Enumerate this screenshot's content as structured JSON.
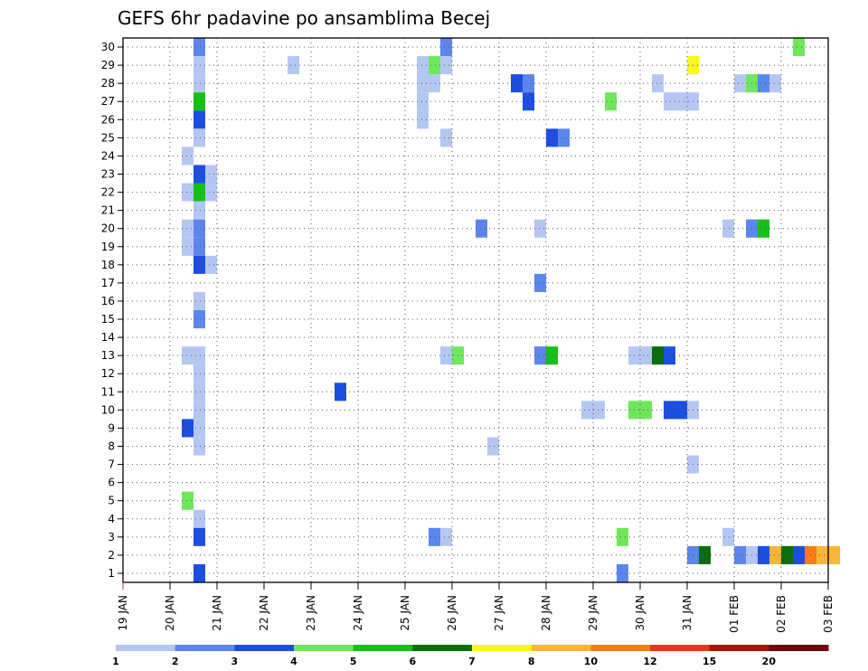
{
  "chart_data": {
    "type": "heatmap",
    "title": "GEFS 6hr padavine po ansamblima Becej",
    "x_ticks": [
      "19 JAN",
      "20 JAN",
      "21 JAN",
      "22 JAN",
      "23 JAN",
      "24 JAN",
      "25 JAN",
      "26 JAN",
      "27 JAN",
      "28 JAN",
      "29 JAN",
      "30 JAN",
      "31 JAN",
      "01 FEB",
      "02 FEB",
      "03 FEB"
    ],
    "y_ticks": [
      1,
      2,
      3,
      4,
      5,
      6,
      7,
      8,
      9,
      10,
      11,
      12,
      13,
      14,
      15,
      16,
      17,
      18,
      19,
      20,
      21,
      22,
      23,
      24,
      25,
      26,
      27,
      28,
      29,
      30
    ],
    "x_range_days": [
      0,
      15
    ],
    "y_range": [
      0.5,
      30.5
    ],
    "grid": true,
    "colorbar": {
      "labels": [
        "1",
        "2",
        "3",
        "4",
        "5",
        "6",
        "7",
        "8",
        "10",
        "12",
        "15",
        "20"
      ],
      "colors": [
        "#b4c7f3",
        "#5b86ec",
        "#1c4fe0",
        "#6ee85a",
        "#16c016",
        "#0a6e0a",
        "#f8f81a",
        "#fcb438",
        "#fc7c14",
        "#e03a16",
        "#a8140e",
        "#6e0a0a"
      ]
    },
    "cells": [
      [
        1.5,
        30,
        2
      ],
      [
        1.5,
        29,
        1
      ],
      [
        1.5,
        28,
        1
      ],
      [
        1.5,
        27,
        5
      ],
      [
        1.5,
        26,
        3
      ],
      [
        1.5,
        25,
        1
      ],
      [
        1.25,
        24,
        1
      ],
      [
        1.5,
        23,
        3
      ],
      [
        1.75,
        23,
        1
      ],
      [
        1.25,
        22,
        1
      ],
      [
        1.5,
        22,
        5
      ],
      [
        1.75,
        22,
        1
      ],
      [
        1.5,
        21,
        1
      ],
      [
        1.25,
        20,
        1
      ],
      [
        1.5,
        20,
        2
      ],
      [
        1.25,
        19,
        1
      ],
      [
        1.5,
        19,
        2
      ],
      [
        1.5,
        18,
        3
      ],
      [
        1.75,
        18,
        1
      ],
      [
        1.5,
        16,
        1
      ],
      [
        1.5,
        15,
        2
      ],
      [
        1.25,
        13,
        1
      ],
      [
        1.5,
        13,
        1
      ],
      [
        1.5,
        12,
        1
      ],
      [
        1.5,
        11,
        1
      ],
      [
        1.5,
        10,
        1
      ],
      [
        1.25,
        9,
        3
      ],
      [
        1.5,
        9,
        1
      ],
      [
        1.5,
        8,
        1
      ],
      [
        1.25,
        5,
        4
      ],
      [
        1.5,
        4,
        1
      ],
      [
        1.5,
        3,
        3
      ],
      [
        1.5,
        1,
        3
      ],
      [
        3.5,
        29,
        1
      ],
      [
        4.5,
        11,
        3
      ],
      [
        6.25,
        29,
        1
      ],
      [
        6.5,
        29,
        4
      ],
      [
        6.25,
        28,
        1
      ],
      [
        6.5,
        28,
        1
      ],
      [
        6.25,
        27,
        1
      ],
      [
        6.25,
        26,
        1
      ],
      [
        6.75,
        30,
        2
      ],
      [
        6.75,
        29,
        1
      ],
      [
        6.75,
        25,
        1
      ],
      [
        6.75,
        13,
        1
      ],
      [
        7.0,
        13,
        4
      ],
      [
        6.5,
        3,
        2
      ],
      [
        6.75,
        3,
        1
      ],
      [
        7.5,
        20,
        2
      ],
      [
        7.75,
        8,
        1
      ],
      [
        8.25,
        28,
        3
      ],
      [
        8.5,
        28,
        2
      ],
      [
        8.5,
        27,
        3
      ],
      [
        8.75,
        20,
        1
      ],
      [
        8.75,
        17,
        2
      ],
      [
        8.75,
        13,
        2
      ],
      [
        9.0,
        13,
        5
      ],
      [
        9.0,
        25,
        3
      ],
      [
        9.25,
        25,
        2
      ],
      [
        9.75,
        10,
        1
      ],
      [
        10.0,
        10,
        1
      ],
      [
        10.25,
        27,
        4
      ],
      [
        10.5,
        3,
        4
      ],
      [
        10.5,
        1,
        2
      ],
      [
        10.75,
        10,
        4
      ],
      [
        11.0,
        10,
        4
      ],
      [
        10.75,
        13,
        1
      ],
      [
        11.0,
        13,
        1
      ],
      [
        11.25,
        13,
        6
      ],
      [
        11.5,
        13,
        3
      ],
      [
        11.25,
        28,
        1
      ],
      [
        11.5,
        27,
        1
      ],
      [
        11.75,
        27,
        1
      ],
      [
        12.0,
        27,
        1
      ],
      [
        11.5,
        10,
        3
      ],
      [
        11.75,
        10,
        3
      ],
      [
        12.0,
        10,
        1
      ],
      [
        12.0,
        29,
        7
      ],
      [
        12.0,
        7,
        1
      ],
      [
        12.0,
        2,
        2
      ],
      [
        12.25,
        2,
        6
      ],
      [
        12.75,
        20,
        1
      ],
      [
        12.75,
        3,
        1
      ],
      [
        13.0,
        28,
        1
      ],
      [
        13.25,
        28,
        4
      ],
      [
        13.5,
        28,
        2
      ],
      [
        13.75,
        28,
        1
      ],
      [
        13.25,
        20,
        2
      ],
      [
        13.5,
        20,
        5
      ],
      [
        13.0,
        2,
        2
      ],
      [
        13.25,
        2,
        1
      ],
      [
        13.5,
        2,
        3
      ],
      [
        13.75,
        2,
        8
      ],
      [
        14.0,
        2,
        6
      ],
      [
        14.25,
        2,
        3
      ],
      [
        14.5,
        2,
        9
      ],
      [
        14.75,
        2,
        8
      ],
      [
        15.0,
        2,
        8
      ],
      [
        14.25,
        30,
        4
      ]
    ]
  }
}
